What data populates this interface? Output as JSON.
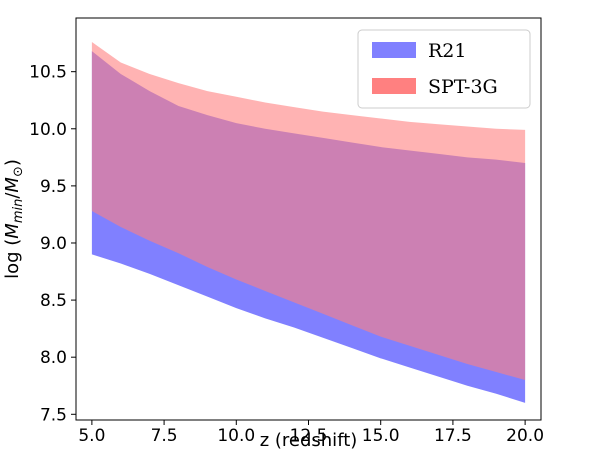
{
  "chart_data": {
    "type": "area",
    "xlabel": "z (redshift)",
    "ylabel": {
      "prefix": "log (",
      "m1": "M",
      "sub1": "min",
      "slash": "/",
      "m2": "M",
      "sub2": "⊙",
      "suffix": ")"
    },
    "xlim": [
      4.45,
      20.55
    ],
    "ylim": [
      7.45,
      10.97
    ],
    "xticks": [
      5.0,
      7.5,
      10.0,
      12.5,
      15.0,
      17.5,
      20.0
    ],
    "xtick_labels": [
      "5.0",
      "7.5",
      "10.0",
      "12.5",
      "15.0",
      "17.5",
      "20.0"
    ],
    "yticks": [
      7.5,
      8.0,
      8.5,
      9.0,
      9.5,
      10.0,
      10.5
    ],
    "ytick_labels": [
      "7.5",
      "8.0",
      "8.5",
      "9.0",
      "9.5",
      "10.0",
      "10.5"
    ],
    "grid": false,
    "legend_position": "top-right",
    "series": [
      {
        "name": "R21",
        "color": "#8080ff",
        "x": [
          5.0,
          6.0,
          7.0,
          8.0,
          9.0,
          10.0,
          11.0,
          12.0,
          13.0,
          14.0,
          15.0,
          16.0,
          17.0,
          18.0,
          19.0,
          20.0
        ],
        "lower": [
          8.9,
          8.82,
          8.73,
          8.63,
          8.53,
          8.43,
          8.34,
          8.26,
          8.17,
          8.08,
          7.99,
          7.91,
          7.83,
          7.75,
          7.68,
          7.6
        ],
        "upper": [
          10.68,
          10.48,
          10.33,
          10.2,
          10.12,
          10.05,
          10.0,
          9.96,
          9.92,
          9.88,
          9.84,
          9.81,
          9.78,
          9.75,
          9.73,
          9.7
        ]
      },
      {
        "name": "SPT-3G",
        "color": "#ff8080",
        "x": [
          5.0,
          6.0,
          7.0,
          8.0,
          9.0,
          10.0,
          11.0,
          12.0,
          13.0,
          14.0,
          15.0,
          16.0,
          17.0,
          18.0,
          19.0,
          20.0
        ],
        "lower": [
          9.28,
          9.14,
          9.02,
          8.91,
          8.79,
          8.68,
          8.58,
          8.48,
          8.38,
          8.28,
          8.18,
          8.1,
          8.02,
          7.94,
          7.87,
          7.8
        ],
        "upper": [
          10.76,
          10.58,
          10.48,
          10.4,
          10.33,
          10.28,
          10.23,
          10.19,
          10.15,
          10.12,
          10.09,
          10.06,
          10.04,
          10.02,
          10.0,
          9.99
        ]
      }
    ]
  }
}
